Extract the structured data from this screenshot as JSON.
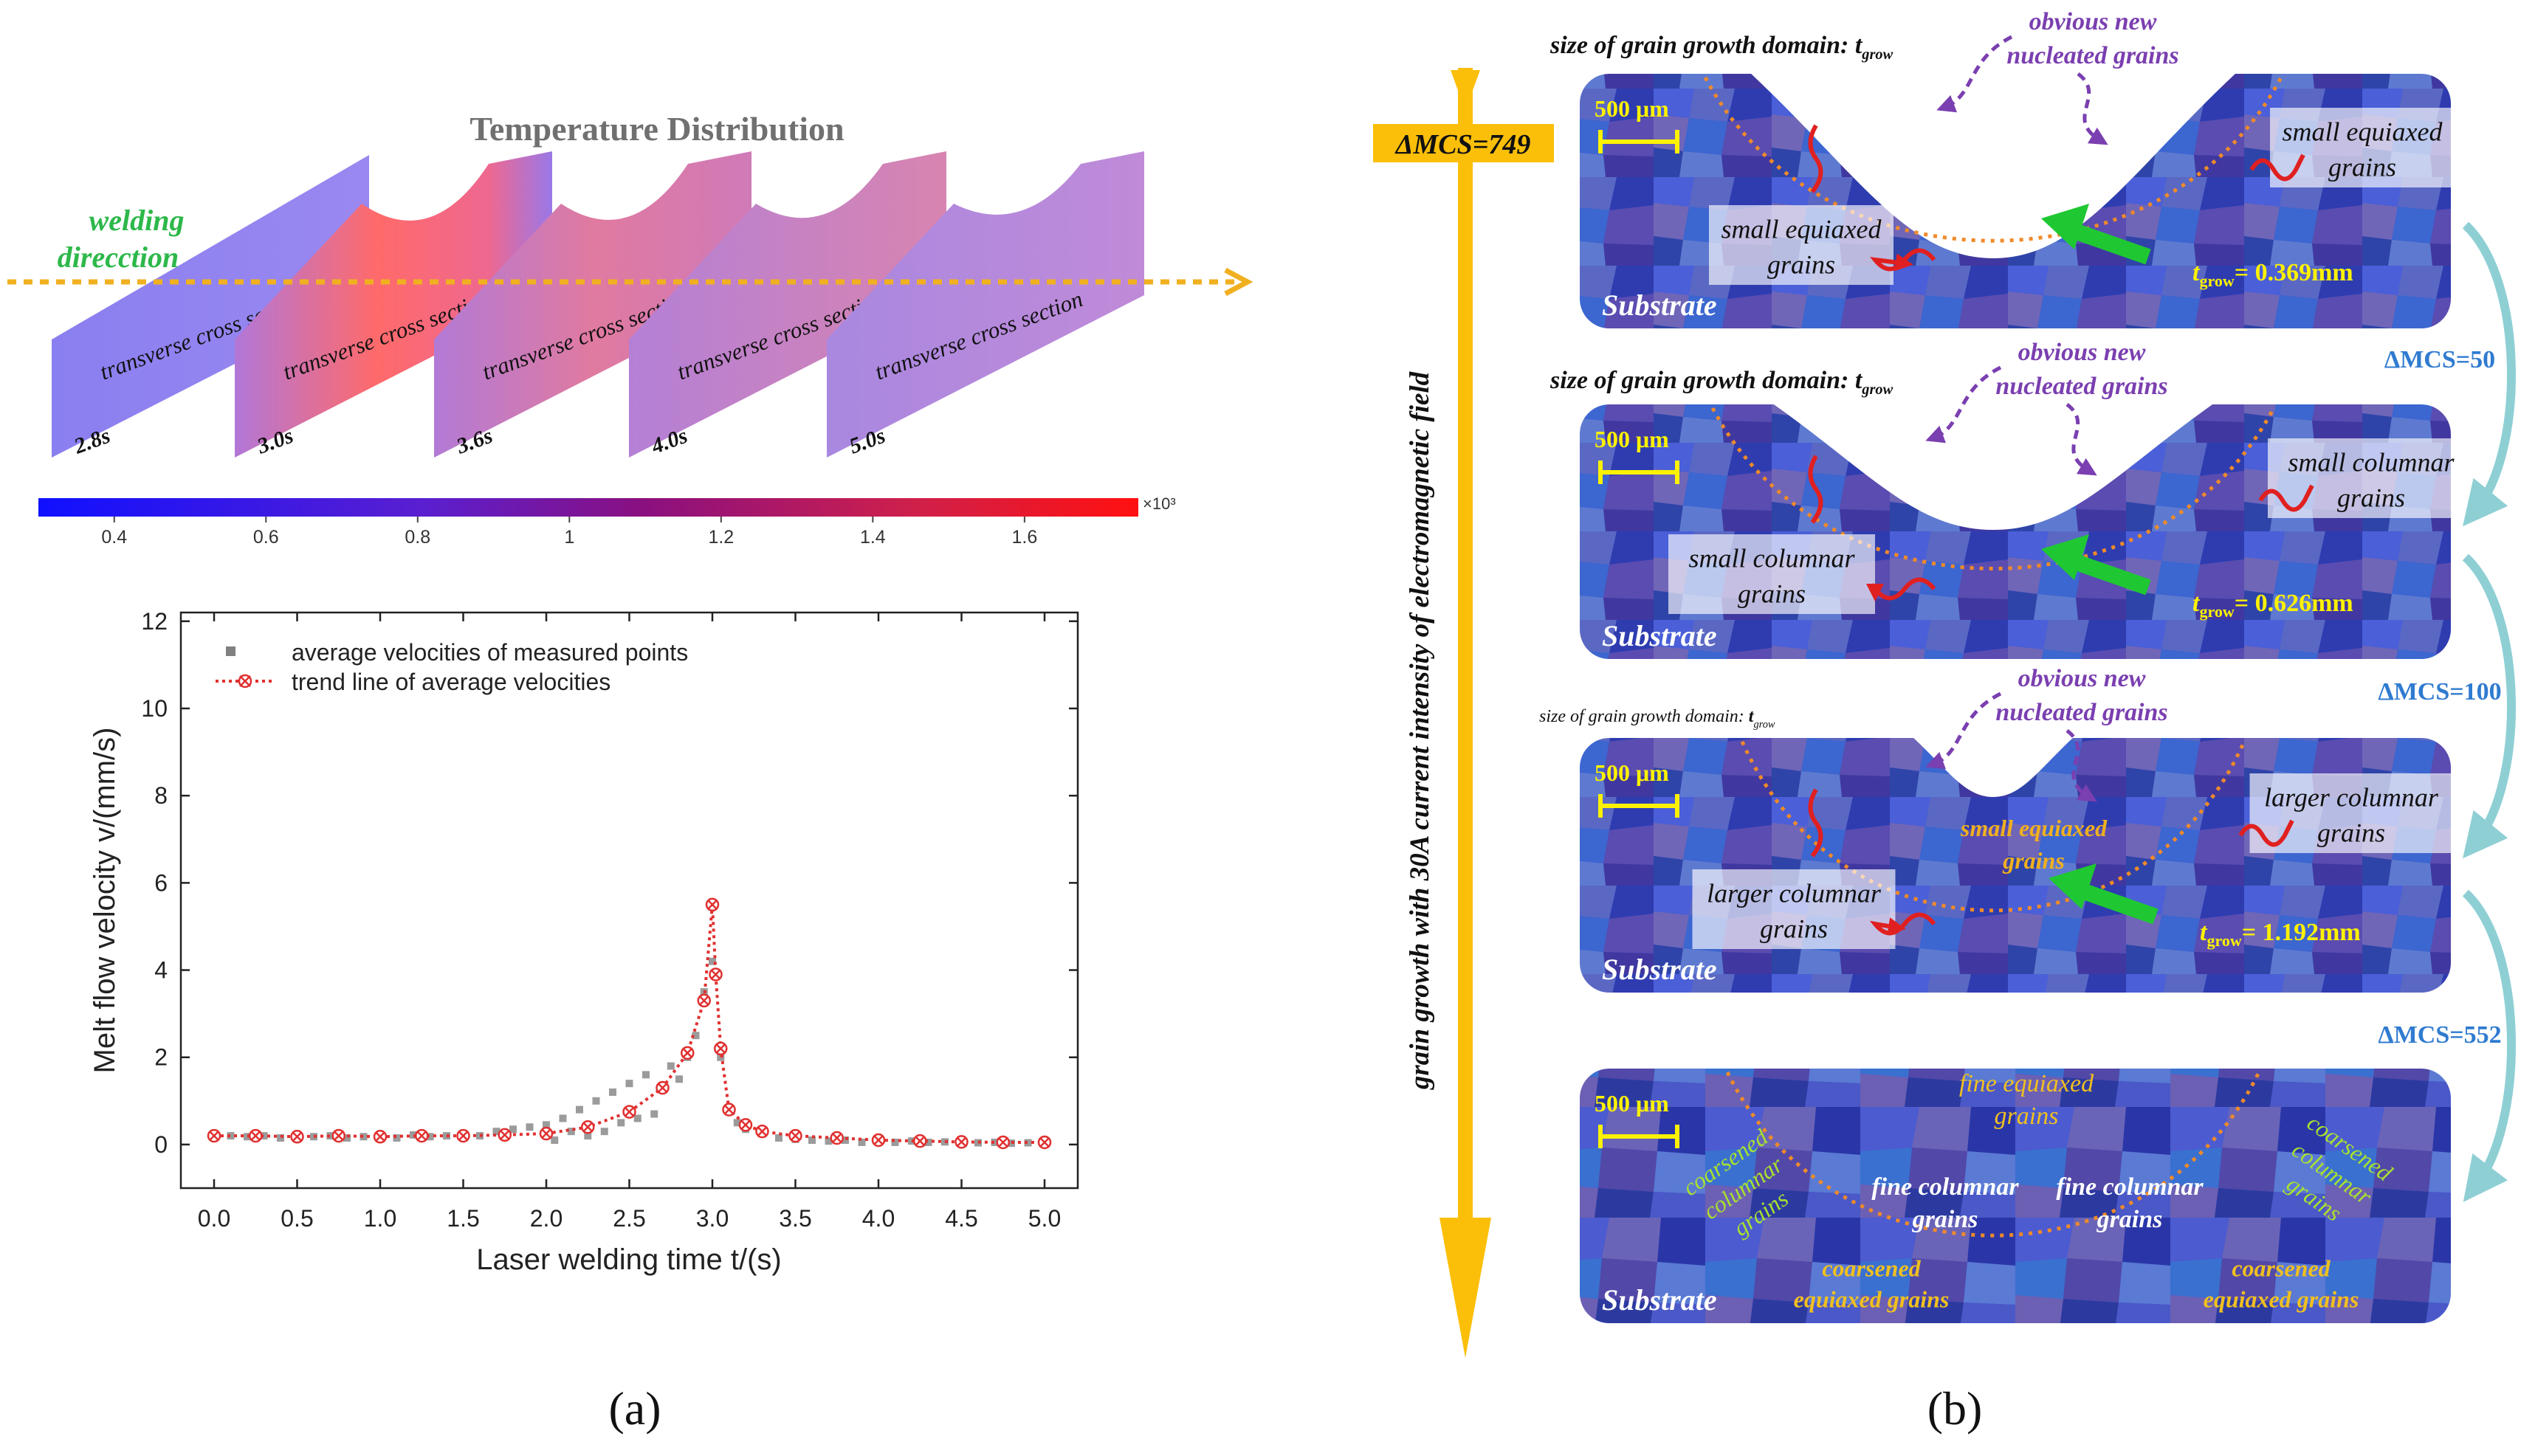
{
  "panel_a": {
    "caption": "(a)",
    "temperature": {
      "title": "Temperature Distribution",
      "welding_label_line1": "welding",
      "welding_label_line2": "direcction",
      "section_label": "transverse cross section",
      "times": [
        "2.8s",
        "3.0s",
        "3.6s",
        "4.0s",
        "5.0s"
      ],
      "colorbar_ticks": [
        "0.4",
        "0.6",
        "0.8",
        "1",
        "1.2",
        "1.4",
        "1.6"
      ],
      "colorbar_tick_values": [
        0.4,
        0.6,
        0.8,
        1.0,
        1.2,
        1.4,
        1.6
      ],
      "colorbar_range": [
        0.3,
        1.75
      ],
      "colorbar_multiplier": "×10³",
      "colors": {
        "low": "#1a1aff",
        "mid": "#7a1fa0",
        "high": "#ff2020",
        "arrow": "#f0b020",
        "welding_text": "#2db84a"
      }
    }
  },
  "chart_data": {
    "type": "scatter",
    "xlabel": "Laser welding time t/(s)",
    "ylabel": "Melt flow velocity v/(mm/s)",
    "xlim": [
      -0.2,
      5.2
    ],
    "ylim": [
      -1,
      12.2
    ],
    "x_ticks": [
      0.0,
      0.5,
      1.0,
      1.5,
      2.0,
      2.5,
      3.0,
      3.5,
      4.0,
      4.5,
      5.0
    ],
    "x_tick_labels": [
      "0.0",
      "0.5",
      "1.0",
      "1.5",
      "2.0",
      "2.5",
      "3.0",
      "3.5",
      "4.0",
      "4.5",
      "5.0"
    ],
    "y_ticks": [
      0,
      2,
      4,
      6,
      8,
      10,
      12
    ],
    "y_tick_labels": [
      "0",
      "2",
      "4",
      "6",
      "8",
      "10",
      "12"
    ],
    "legend_position": "top-left",
    "series": [
      {
        "name": "average velocities of measured points",
        "style": "scatter",
        "color": "#808080",
        "x": [
          0.0,
          0.1,
          0.2,
          0.3,
          0.4,
          0.5,
          0.6,
          0.7,
          0.8,
          0.9,
          1.0,
          1.1,
          1.2,
          1.3,
          1.4,
          1.5,
          1.6,
          1.7,
          1.8,
          1.9,
          2.0,
          2.05,
          2.1,
          2.15,
          2.2,
          2.25,
          2.3,
          2.35,
          2.4,
          2.45,
          2.5,
          2.55,
          2.6,
          2.65,
          2.7,
          2.75,
          2.8,
          2.85,
          2.9,
          2.95,
          3.0,
          3.05,
          3.1,
          3.15,
          3.2,
          3.3,
          3.4,
          3.5,
          3.6,
          3.7,
          3.8,
          3.9,
          4.0,
          4.1,
          4.2,
          4.3,
          4.4,
          4.5,
          4.6,
          4.7,
          4.8,
          4.9,
          5.0
        ],
        "y": [
          0.15,
          0.2,
          0.18,
          0.2,
          0.15,
          0.22,
          0.18,
          0.2,
          0.15,
          0.18,
          0.2,
          0.15,
          0.22,
          0.18,
          0.2,
          0.25,
          0.2,
          0.3,
          0.35,
          0.4,
          0.45,
          0.1,
          0.6,
          0.3,
          0.8,
          0.2,
          1.0,
          0.3,
          1.2,
          0.5,
          1.4,
          0.6,
          1.6,
          0.7,
          1.3,
          1.8,
          1.5,
          2.0,
          2.5,
          3.5,
          4.2,
          2.0,
          0.8,
          0.5,
          0.35,
          0.25,
          0.15,
          0.12,
          0.1,
          0.08,
          0.1,
          0.05,
          0.08,
          0.05,
          0.08,
          0.05,
          0.06,
          0.05,
          0.04,
          0.05,
          0.03,
          0.04,
          0.03
        ]
      },
      {
        "name": "trend line of average velocities",
        "style": "dotted-line-with-x-markers",
        "color": "#e03030",
        "x": [
          0.0,
          0.25,
          0.5,
          0.75,
          1.0,
          1.25,
          1.5,
          1.75,
          2.0,
          2.25,
          2.5,
          2.7,
          2.85,
          2.95,
          3.0,
          3.02,
          3.05,
          3.1,
          3.2,
          3.3,
          3.5,
          3.75,
          4.0,
          4.25,
          4.5,
          4.75,
          5.0
        ],
        "y": [
          0.2,
          0.2,
          0.18,
          0.2,
          0.18,
          0.2,
          0.2,
          0.22,
          0.25,
          0.4,
          0.75,
          1.3,
          2.1,
          3.3,
          5.5,
          3.9,
          2.2,
          0.8,
          0.45,
          0.3,
          0.2,
          0.15,
          0.1,
          0.08,
          0.06,
          0.05,
          0.05
        ]
      }
    ]
  },
  "panel_b": {
    "caption": "(b)",
    "axis_mcs_label": "ΔMCS=749",
    "vertical_axis_label": "grain growth with 30A current intensity of  electromagnetic field",
    "colors": {
      "orange_axis": "#fbbf0a",
      "mcs_blue": "#2f7bd0",
      "purple": "#7a3fb0",
      "yellow": "#fff200",
      "green": "#1fc832",
      "red": "#e02020",
      "curved_arrow": "#8ecfd4"
    },
    "steps": [
      "ΔMCS=50",
      "ΔMCS=100",
      "ΔMCS=552"
    ],
    "images": [
      {
        "size_label": "size of grain growth domain: ",
        "tgrow_symbol": "t",
        "tgrow_sub": "grow",
        "nucleated_line1": "obvious new",
        "nucleated_line2": "nucleated grains",
        "scale_bar": "500 μm",
        "left_label_line1": "small equiaxed",
        "left_label_line2": "grains",
        "right_label_line1": "small equiaxed",
        "right_label_line2": "grains",
        "tgrow_value": "= 0.369mm",
        "substrate": "Substrate"
      },
      {
        "size_label": "size of grain growth domain: ",
        "tgrow_symbol": "t",
        "tgrow_sub": "grow",
        "nucleated_line1": "obvious new",
        "nucleated_line2": "nucleated grains",
        "scale_bar": "500 μm",
        "left_label_line1": "small columnar",
        "left_label_line2": "grains",
        "right_label_line1": "small columnar",
        "right_label_line2": "grains",
        "tgrow_value": "= 0.626mm",
        "substrate": "Substrate"
      },
      {
        "size_label": "size of grain growth domain: ",
        "tgrow_symbol": "t",
        "tgrow_sub": "grow",
        "nucleated_line1": "obvious new",
        "nucleated_line2": "nucleated grains",
        "scale_bar": "500 μm",
        "left_label_line1": "larger columnar",
        "left_label_line2": "grains",
        "right_label_line1": "larger columnar",
        "right_label_line2": "grains",
        "center_label_line1": "small equiaxed",
        "center_label_line2": "grains",
        "tgrow_value": "= 1.192mm",
        "substrate": "Substrate"
      },
      {
        "scale_bar": "500 μm",
        "fine_equiaxed_line1": "fine equiaxed",
        "fine_equiaxed_line2": "grains",
        "fine_columnar_left_line1": "fine columnar",
        "fine_columnar_left_line2": "grains",
        "fine_columnar_right_line1": "fine columnar",
        "fine_columnar_right_line2": "grains",
        "coarsened_columnar_left": [
          "coarsened",
          "columnar",
          "grains"
        ],
        "coarsened_columnar_right": [
          "coarsened",
          "columnar",
          "grains"
        ],
        "coarsened_equiaxed_left_line1": "coarsened",
        "coarsened_equiaxed_left_line2": "equiaxed grains",
        "coarsened_equiaxed_right_line1": "coarsened",
        "coarsened_equiaxed_right_line2": "equiaxed grains",
        "substrate": "Substrate"
      }
    ]
  }
}
